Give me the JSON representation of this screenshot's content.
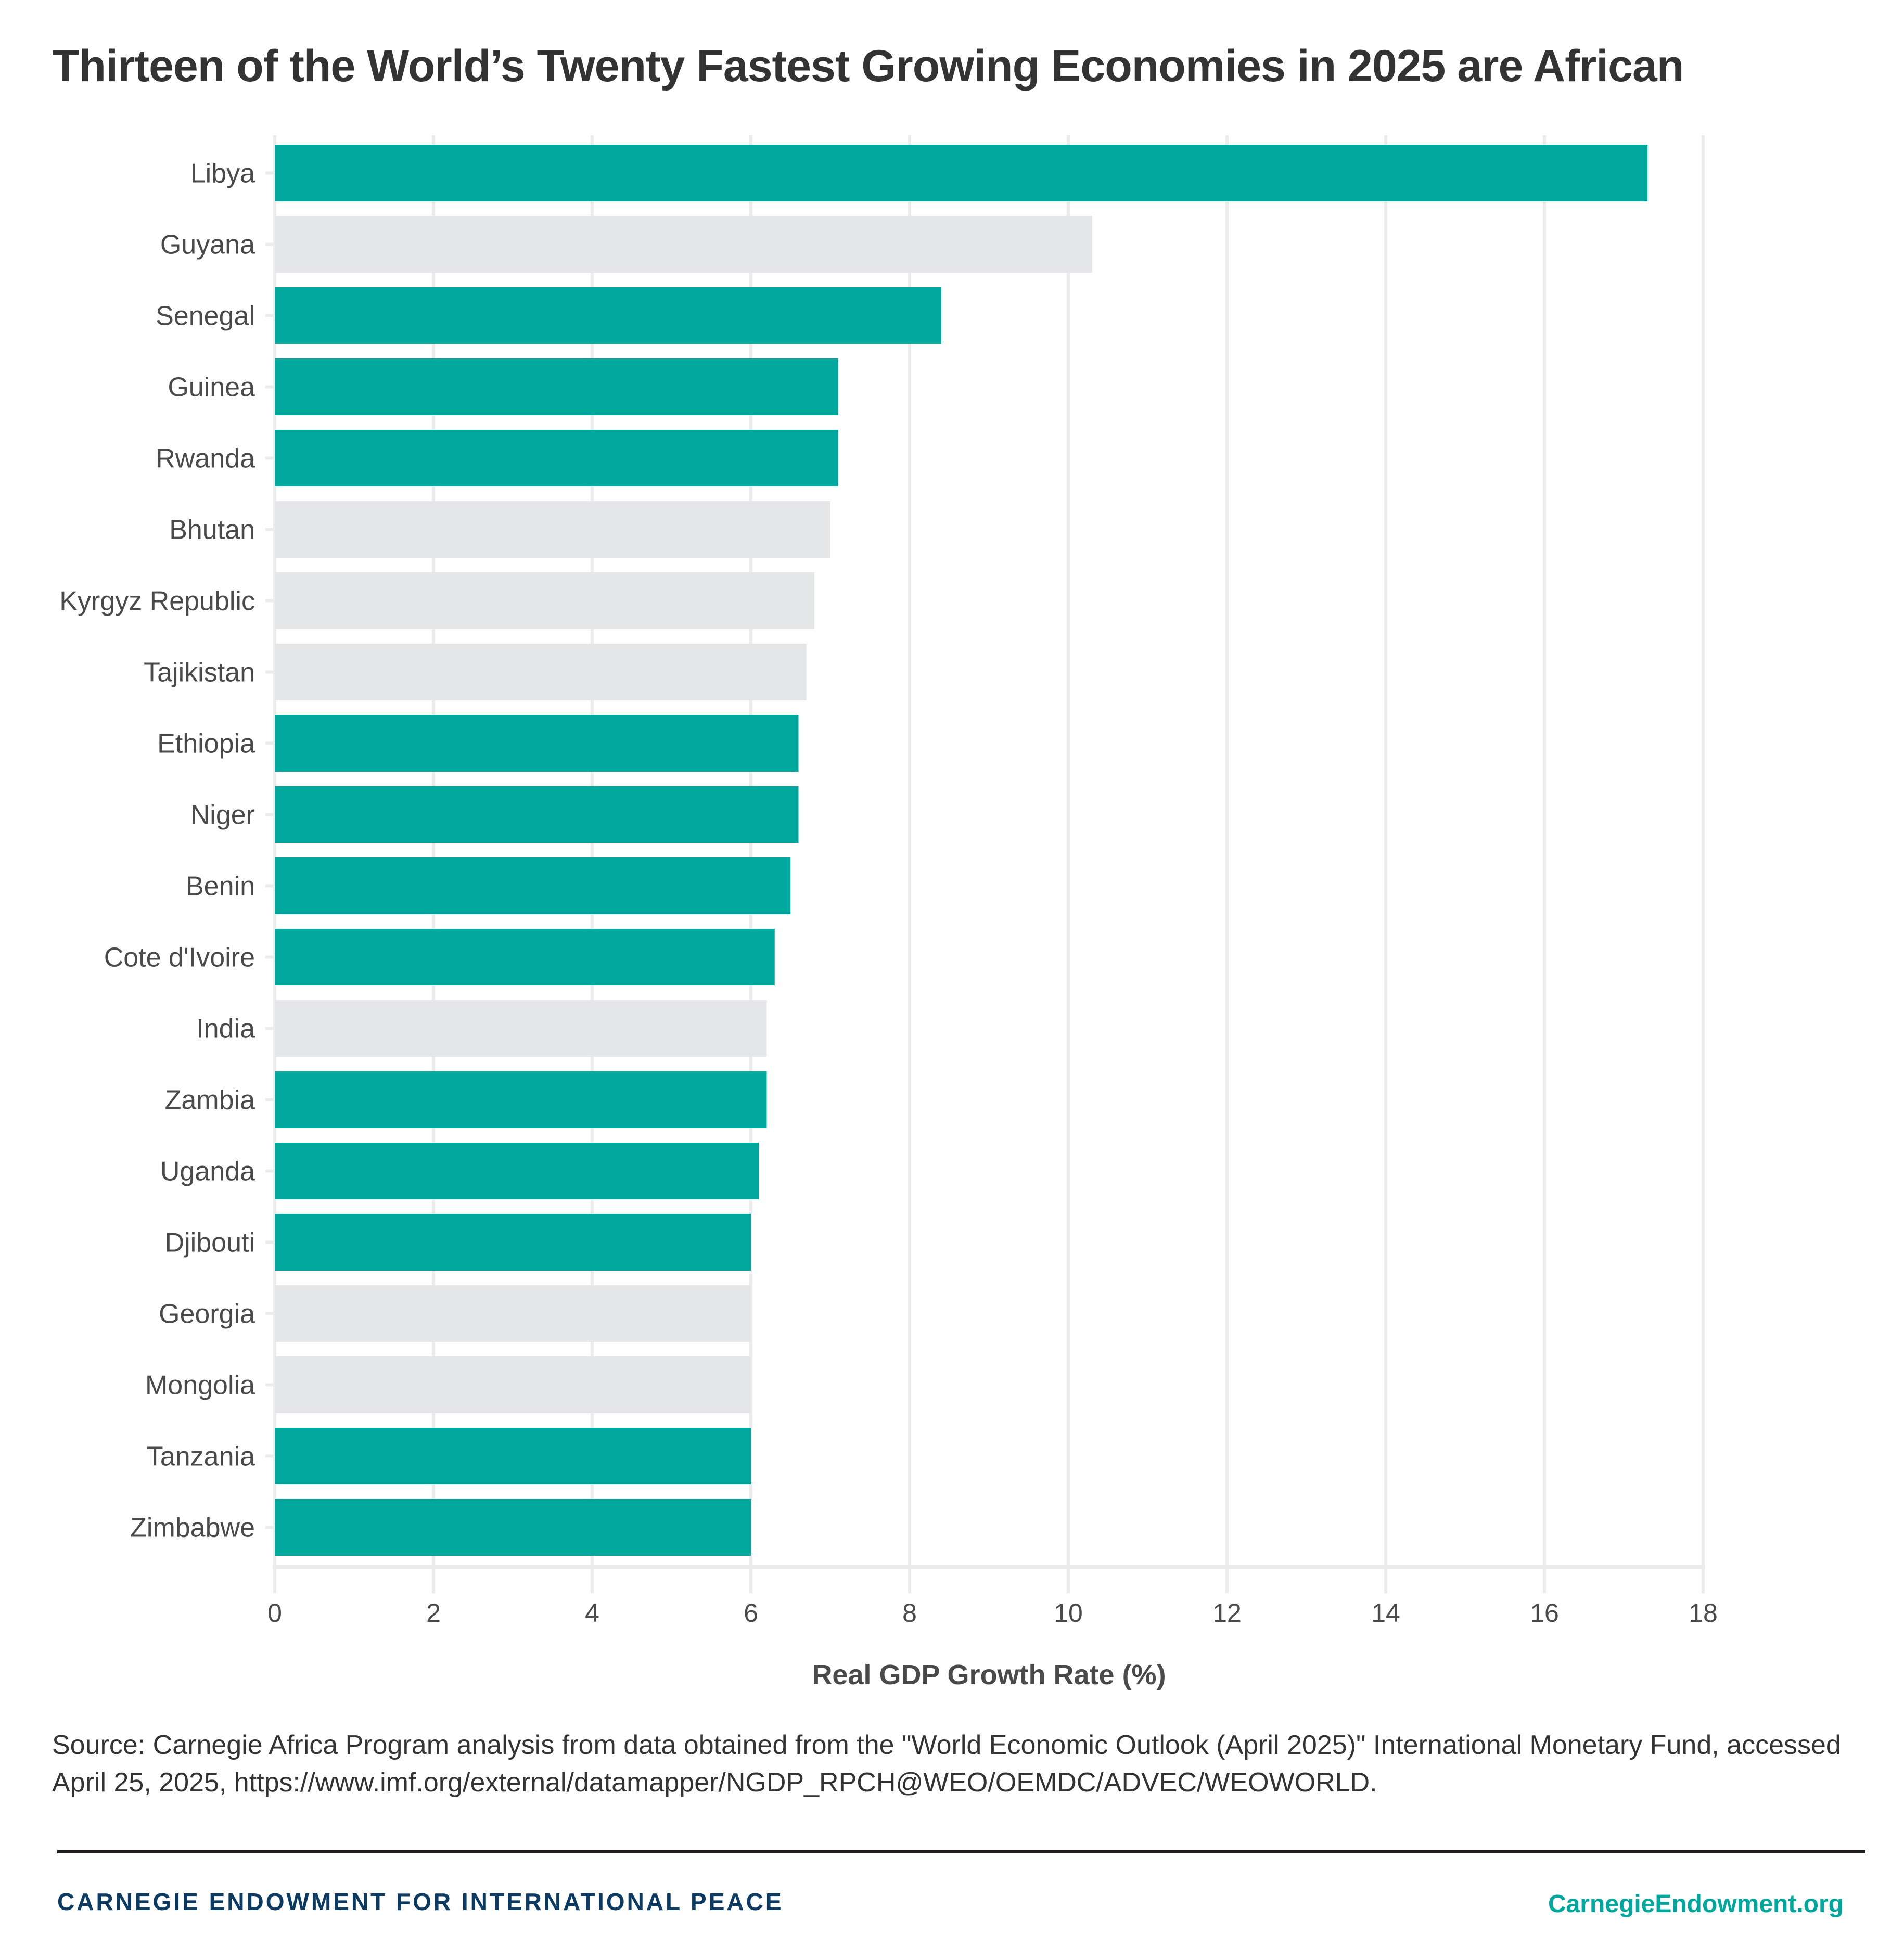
{
  "title": "Thirteen of the World’s Twenty Fastest Growing Economies in 2025 are African",
  "chart_data": {
    "type": "bar",
    "orientation": "horizontal",
    "title": "Thirteen of the World’s Twenty Fastest Growing Economies in 2025 are African",
    "xlabel": "Real GDP Growth Rate (%)",
    "ylabel": "",
    "xlim": [
      0,
      18
    ],
    "xticks": [
      0,
      2,
      4,
      6,
      8,
      10,
      12,
      14,
      16,
      18
    ],
    "grid": true,
    "legend": "none",
    "categories": [
      "Libya",
      "Guyana",
      "Senegal",
      "Guinea",
      "Rwanda",
      "Bhutan",
      "Kyrgyz Republic",
      "Tajikistan",
      "Ethiopia",
      "Niger",
      "Benin",
      "Cote d'Ivoire",
      "India",
      "Zambia",
      "Uganda",
      "Djibouti",
      "Georgia",
      "Mongolia",
      "Tanzania",
      "Zimbabwe"
    ],
    "values": [
      17.3,
      10.3,
      8.4,
      7.1,
      7.1,
      7.0,
      6.8,
      6.7,
      6.6,
      6.6,
      6.5,
      6.3,
      6.2,
      6.2,
      6.1,
      6.0,
      6.0,
      6.0,
      6.0,
      6.0
    ],
    "african": [
      true,
      false,
      true,
      true,
      true,
      false,
      false,
      false,
      true,
      true,
      true,
      true,
      false,
      true,
      true,
      true,
      false,
      false,
      true,
      true
    ],
    "colors": {
      "african": "#00a79d",
      "non_african": "#e5e6e8"
    }
  },
  "source": "Source: Carnegie Africa Program analysis from data obtained from the \"World Economic Outlook (April 2025)\" International Monetary Fund, accessed April 25, 2025, https://www.imf.org/external/datamapper/NGDP_RPCH@WEO/OEMDC/ADVEC/WEOWORLD.",
  "footer": {
    "org_name": "CARNEGIE ENDOWMENT FOR INTERNATIONAL PEACE",
    "url": "CarnegieEndowment.org"
  }
}
